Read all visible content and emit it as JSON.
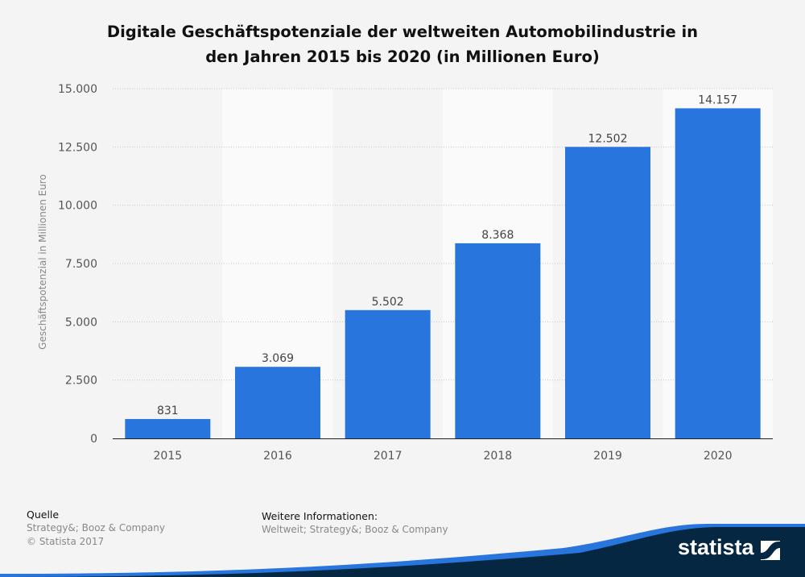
{
  "chart_data": {
    "type": "bar",
    "title": "Digitale Geschäftspotenziale der weltweiten Automobilindustrie in den Jahren 2015 bis 2020 (in Millionen Euro)",
    "title_lines": [
      "Digitale Geschäftspotenziale der weltweiten Automobilindustrie in",
      "den Jahren 2015 bis 2020 (in Millionen Euro)"
    ],
    "categories": [
      "2015",
      "2016",
      "2017",
      "2018",
      "2019",
      "2020"
    ],
    "values": [
      831,
      3069,
      5502,
      8368,
      12502,
      14157
    ],
    "value_labels": [
      "831",
      "3.069",
      "5.502",
      "8.368",
      "12.502",
      "14.157"
    ],
    "xlabel": "",
    "ylabel": "Geschäftspotenzial in Millionen Euro",
    "ylim": [
      0,
      15000
    ],
    "yticks": [
      0,
      2500,
      5000,
      7500,
      10000,
      12500,
      15000
    ],
    "ytick_labels": [
      "0",
      "2.500",
      "5.000",
      "7.500",
      "10.000",
      "12.500",
      "15.000"
    ],
    "grid": true,
    "bar_color": "#2876dd"
  },
  "footer": {
    "source_heading": "Quelle",
    "source": "Strategy&; Booz & Company",
    "copyright": "© Statista 2017",
    "info_heading": "Weitere Informationen:",
    "info": "Weltweit; Strategy&; Booz & Company"
  },
  "brand": {
    "name": "statista",
    "colors": {
      "dark": "#062742",
      "accent": "#2876dd"
    }
  }
}
